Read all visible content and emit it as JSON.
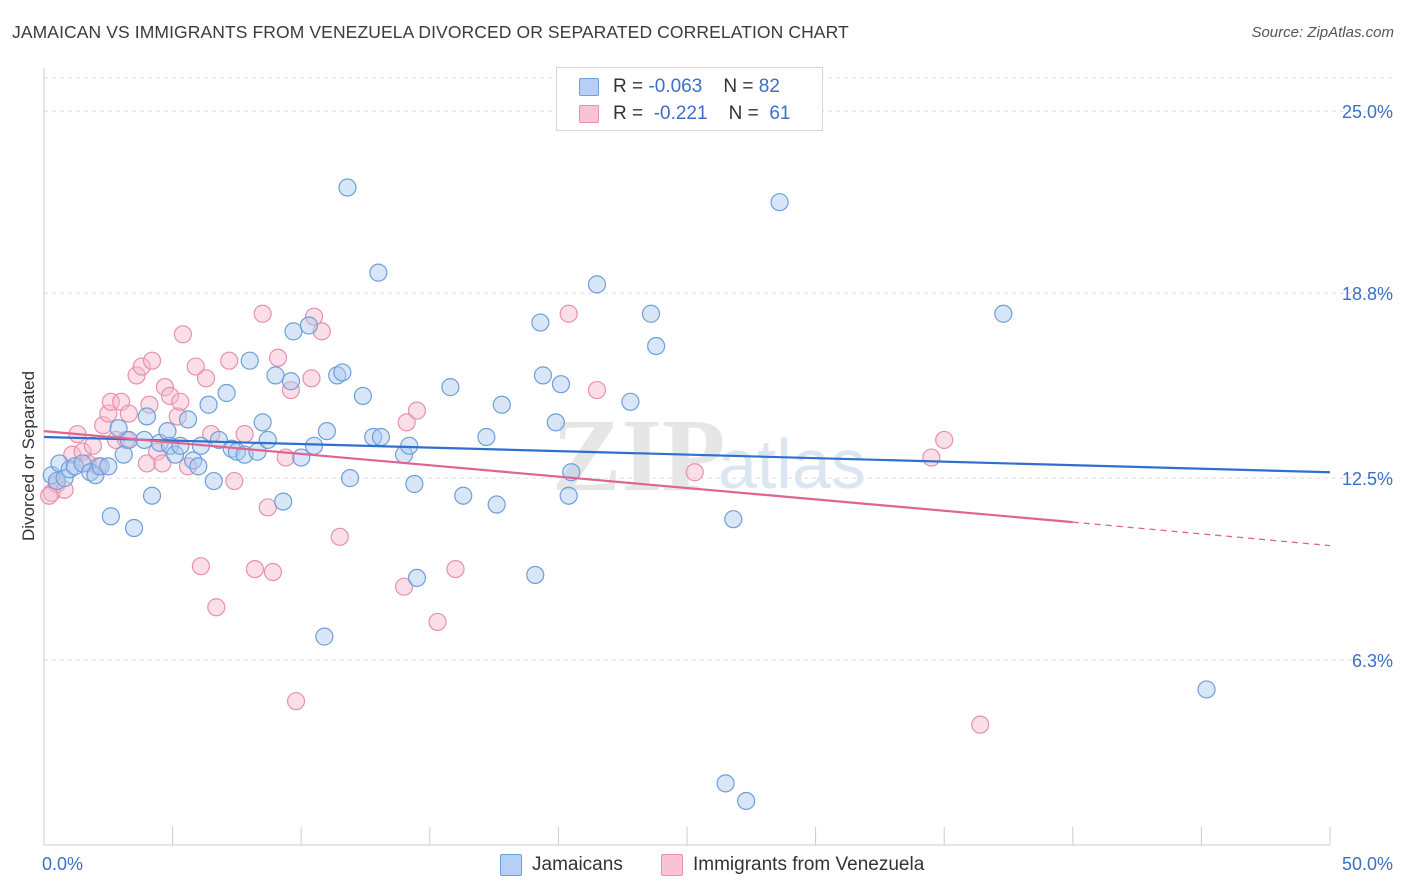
{
  "header": {
    "title": "JAMAICAN VS IMMIGRANTS FROM VENEZUELA DIVORCED OR SEPARATED CORRELATION CHART",
    "source": "Source: ZipAtlas.com"
  },
  "legend_top": [
    {
      "r_label": "R =",
      "r_value": "-0.063",
      "n_label": "N =",
      "n_value": "82"
    },
    {
      "r_label": "R =",
      "r_value": "-0.221",
      "n_label": "N =",
      "n_value": "61"
    }
  ],
  "watermark": {
    "zip": "ZIP",
    "atlas": "atlas"
  },
  "colors": {
    "blue_fill": "#a9c8f0",
    "blue_stroke": "#6f9fd8",
    "blue_line": "#2f6fcf",
    "pink_fill": "#f6b8cb",
    "pink_stroke": "#e890ad",
    "pink_line": "#e0648f",
    "grid": "#dddddd",
    "tick_text": "#3b6fc9"
  },
  "chart_data": {
    "type": "scatter",
    "title": "JAMAICAN VS IMMIGRANTS FROM VENEZUELA DIVORCED OR SEPARATED CORRELATION CHART",
    "xlabel": "",
    "ylabel": "Divorced or Separated",
    "xlim": [
      0,
      50
    ],
    "ylim": [
      0,
      26.2
    ],
    "x_tick_labels": [
      "0.0%",
      "50.0%"
    ],
    "y_ticks": [
      6.3,
      12.5,
      18.8,
      25.0
    ],
    "y_tick_labels": [
      "6.3%",
      "12.5%",
      "18.8%",
      "25.0%"
    ],
    "grid": "horizontal dashed",
    "legend_position": "bottom",
    "series": [
      {
        "name": "Jamaicans",
        "r": -0.063,
        "n": 82,
        "trend": {
          "x0": 0,
          "y0": 13.9,
          "x1": 50,
          "y1": 12.7
        },
        "points": [
          [
            0.3,
            12.6
          ],
          [
            0.5,
            12.4
          ],
          [
            0.6,
            13.0
          ],
          [
            0.8,
            12.5
          ],
          [
            1.0,
            12.8
          ],
          [
            1.2,
            12.9
          ],
          [
            1.5,
            13.0
          ],
          [
            1.8,
            12.7
          ],
          [
            2.0,
            12.6
          ],
          [
            2.2,
            12.9
          ],
          [
            2.5,
            12.9
          ],
          [
            2.6,
            11.2
          ],
          [
            2.9,
            14.2
          ],
          [
            3.1,
            13.3
          ],
          [
            3.3,
            13.8
          ],
          [
            3.5,
            10.8
          ],
          [
            3.9,
            13.8
          ],
          [
            4.0,
            14.6
          ],
          [
            4.2,
            11.9
          ],
          [
            4.5,
            13.7
          ],
          [
            4.8,
            14.1
          ],
          [
            4.9,
            13.6
          ],
          [
            5.1,
            13.3
          ],
          [
            5.3,
            13.6
          ],
          [
            5.6,
            14.5
          ],
          [
            5.8,
            13.1
          ],
          [
            6.0,
            12.9
          ],
          [
            6.1,
            13.6
          ],
          [
            6.4,
            15.0
          ],
          [
            6.6,
            12.4
          ],
          [
            6.8,
            13.8
          ],
          [
            7.1,
            15.4
          ],
          [
            7.3,
            13.5
          ],
          [
            7.5,
            13.4
          ],
          [
            7.8,
            13.3
          ],
          [
            8.0,
            16.5
          ],
          [
            8.3,
            13.4
          ],
          [
            8.5,
            14.4
          ],
          [
            8.7,
            13.8
          ],
          [
            9.0,
            16.0
          ],
          [
            9.3,
            11.7
          ],
          [
            9.6,
            15.8
          ],
          [
            9.7,
            17.5
          ],
          [
            10.0,
            13.2
          ],
          [
            10.3,
            17.7
          ],
          [
            10.5,
            13.6
          ],
          [
            10.9,
            7.1
          ],
          [
            11.0,
            14.1
          ],
          [
            11.4,
            16.0
          ],
          [
            11.6,
            16.1
          ],
          [
            11.8,
            22.4
          ],
          [
            11.9,
            12.5
          ],
          [
            12.4,
            15.3
          ],
          [
            12.8,
            13.9
          ],
          [
            13.1,
            13.9
          ],
          [
            13.0,
            19.5
          ],
          [
            14.0,
            13.3
          ],
          [
            14.2,
            13.6
          ],
          [
            14.4,
            12.3
          ],
          [
            14.5,
            9.1
          ],
          [
            15.8,
            15.6
          ],
          [
            16.3,
            11.9
          ],
          [
            17.2,
            13.9
          ],
          [
            17.6,
            11.6
          ],
          [
            17.8,
            15.0
          ],
          [
            19.1,
            9.2
          ],
          [
            19.3,
            17.8
          ],
          [
            19.4,
            16.0
          ],
          [
            19.9,
            14.4
          ],
          [
            20.1,
            15.7
          ],
          [
            20.4,
            11.9
          ],
          [
            20.5,
            12.7
          ],
          [
            21.5,
            19.1
          ],
          [
            22.8,
            15.1
          ],
          [
            23.6,
            18.1
          ],
          [
            23.8,
            17.0
          ],
          [
            26.5,
            2.1
          ],
          [
            26.8,
            11.1
          ],
          [
            27.3,
            1.5
          ],
          [
            28.6,
            21.9
          ],
          [
            37.3,
            18.1
          ],
          [
            45.2,
            5.3
          ]
        ]
      },
      {
        "name": "Immigrants from Venezuela",
        "r": -0.221,
        "n": 61,
        "trend": {
          "x0": 0,
          "y0": 14.1,
          "x1": 40,
          "y1": 11.0,
          "dash_x1": 50,
          "dash_y1": 10.2
        },
        "points": [
          [
            0.3,
            12.0
          ],
          [
            0.5,
            12.3
          ],
          [
            0.8,
            12.1
          ],
          [
            1.1,
            13.3
          ],
          [
            1.3,
            14.0
          ],
          [
            1.5,
            13.4
          ],
          [
            1.7,
            13.0
          ],
          [
            1.9,
            13.6
          ],
          [
            2.1,
            12.9
          ],
          [
            2.3,
            14.3
          ],
          [
            2.5,
            14.7
          ],
          [
            2.6,
            15.1
          ],
          [
            2.8,
            13.8
          ],
          [
            3.0,
            15.1
          ],
          [
            3.2,
            13.8
          ],
          [
            3.3,
            14.7
          ],
          [
            3.6,
            16.0
          ],
          [
            3.8,
            16.3
          ],
          [
            4.0,
            13.0
          ],
          [
            4.1,
            15.0
          ],
          [
            4.2,
            16.5
          ],
          [
            4.4,
            13.4
          ],
          [
            4.6,
            13.0
          ],
          [
            4.7,
            15.6
          ],
          [
            4.9,
            15.3
          ],
          [
            5.2,
            14.6
          ],
          [
            5.3,
            15.1
          ],
          [
            5.4,
            17.4
          ],
          [
            5.6,
            12.9
          ],
          [
            5.9,
            16.3
          ],
          [
            6.1,
            9.5
          ],
          [
            6.3,
            15.9
          ],
          [
            6.5,
            14.0
          ],
          [
            6.7,
            8.1
          ],
          [
            7.2,
            16.5
          ],
          [
            7.4,
            12.4
          ],
          [
            7.8,
            14.0
          ],
          [
            8.2,
            9.4
          ],
          [
            8.5,
            18.1
          ],
          [
            8.7,
            11.5
          ],
          [
            8.9,
            9.3
          ],
          [
            9.1,
            16.6
          ],
          [
            9.4,
            13.2
          ],
          [
            9.6,
            15.5
          ],
          [
            9.8,
            4.9
          ],
          [
            10.4,
            15.9
          ],
          [
            10.5,
            18.0
          ],
          [
            10.8,
            17.5
          ],
          [
            11.5,
            10.5
          ],
          [
            14.0,
            8.8
          ],
          [
            14.1,
            14.4
          ],
          [
            14.5,
            14.8
          ],
          [
            15.3,
            7.6
          ],
          [
            16.0,
            9.4
          ],
          [
            20.4,
            18.1
          ],
          [
            21.5,
            15.5
          ],
          [
            25.3,
            12.7
          ],
          [
            34.5,
            13.2
          ],
          [
            35.0,
            13.8
          ],
          [
            36.4,
            4.1
          ],
          [
            0.2,
            11.9
          ]
        ]
      }
    ]
  },
  "bottom_legend": [
    {
      "label": "Jamaicans"
    },
    {
      "label": "Immigrants from Venezuela"
    }
  ]
}
